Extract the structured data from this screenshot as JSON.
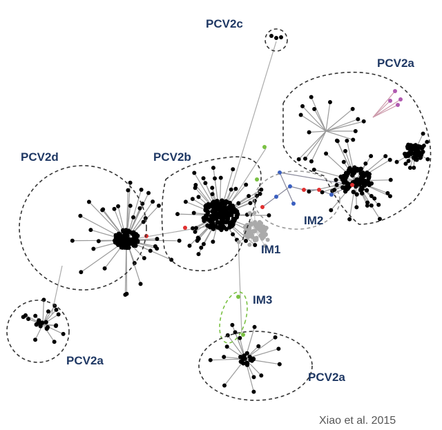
{
  "labels": {
    "pcv2c": "PCV2c",
    "pcv2a_top": "PCV2a",
    "pcv2d": "PCV2d",
    "pcv2b": "PCV2b",
    "im2": "IM2",
    "im1": "IM1",
    "im3": "IM3",
    "pcv2a_left": "PCV2a",
    "pcv2a_bottom": "PCV2a"
  },
  "citation": "Xiao et al. 2015"
}
